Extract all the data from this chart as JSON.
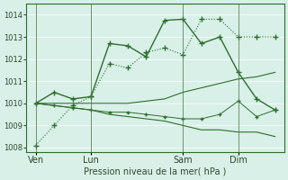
{
  "title": "",
  "xlabel": "Pression niveau de la mer( hPa )",
  "ylabel": "",
  "bg_color": "#d8f0e8",
  "grid_color": "#ffffff",
  "line_color": "#2d6e2d",
  "ylim": [
    1007.8,
    1014.5
  ],
  "yticks": [
    1008,
    1009,
    1010,
    1011,
    1012,
    1013,
    1014
  ],
  "xtick_labels": [
    "Ven",
    "Lun",
    "Sam",
    "Dim"
  ],
  "xtick_positions": [
    0,
    3,
    8,
    11
  ],
  "total_points": 14,
  "series1": [
    1008.1,
    1009.0,
    1009.9,
    1010.3,
    1011.8,
    1011.6,
    1012.3,
    1012.5,
    1012.2,
    1013.8,
    1013.8,
    1013.0,
    1013.0,
    1013.0
  ],
  "series2": [
    1010.0,
    1010.5,
    1010.2,
    1010.3,
    1012.7,
    1012.6,
    1012.1,
    1013.75,
    1013.8,
    1012.7,
    1013.0,
    1011.4,
    1010.2,
    1009.7
  ],
  "series3": [
    1010.0,
    1010.0,
    1010.0,
    1010.0,
    1010.0,
    1010.0,
    1010.1,
    1010.2,
    1010.5,
    1010.7,
    1010.9,
    1011.1,
    1011.2,
    1011.4
  ],
  "series4": [
    1010.0,
    1009.9,
    1009.8,
    1009.7,
    1009.6,
    1009.6,
    1009.5,
    1009.4,
    1009.3,
    1009.3,
    1009.5,
    1010.1,
    1009.4,
    1009.7
  ],
  "series5": [
    1010.0,
    1009.9,
    1009.8,
    1009.7,
    1009.5,
    1009.4,
    1009.3,
    1009.2,
    1009.0,
    1008.8,
    1008.8,
    1008.7,
    1008.7,
    1008.5
  ],
  "vlines": [
    0,
    3,
    8,
    11
  ]
}
